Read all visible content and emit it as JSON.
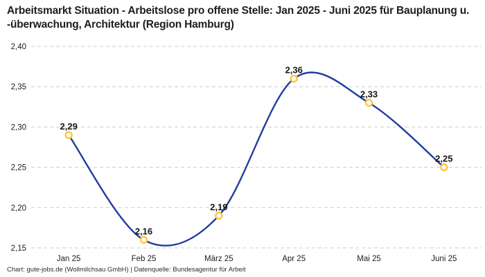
{
  "title": {
    "text": "Arbeitsmarkt Situation - Arbeitslose pro offene Stelle: Jan 2025 - Juni 2025 für Bauplanung u. -überwachung, Architektur (Region Hamburg)"
  },
  "footer": {
    "text": "Chart: gute-jobs.de (Wollmilchsau GmbH) | Datenquelle: Bundesagentur für Arbeit"
  },
  "chart_data": {
    "type": "line",
    "title": "Arbeitsmarkt Situation - Arbeitslose pro offene Stelle: Jan 2025 - Juni 2025 für Bauplanung u. -überwachung, Architektur (Region Hamburg)",
    "categories": [
      "Jan 25",
      "Feb 25",
      "März 25",
      "Apr 25",
      "Mai 25",
      "Juni 25"
    ],
    "values": [
      2.29,
      2.16,
      2.19,
      2.36,
      2.33,
      2.25
    ],
    "value_labels": [
      "2,29",
      "2,16",
      "2,19",
      "2,36",
      "2,33",
      "2,25"
    ],
    "xlabel": "",
    "ylabel": "",
    "ylim": [
      2.15,
      2.4
    ],
    "y_ticks": [
      2.4,
      2.35,
      2.3,
      2.25,
      2.2,
      2.15
    ],
    "y_tick_labels": [
      "2,40",
      "2,35",
      "2,30",
      "2,25",
      "2,20",
      "2,15"
    ],
    "grid": "horizontal-dashed",
    "legend": "none",
    "smooth": true,
    "line_color": "#1f3d9c",
    "marker_stroke_color": "#ffc53d",
    "marker_fill_color": "#ffffff",
    "grid_color": "#cccccc",
    "source_note": "Chart: gute-jobs.de (Wollmilchsau GmbH) | Datenquelle: Bundesagentur für Arbeit"
  }
}
